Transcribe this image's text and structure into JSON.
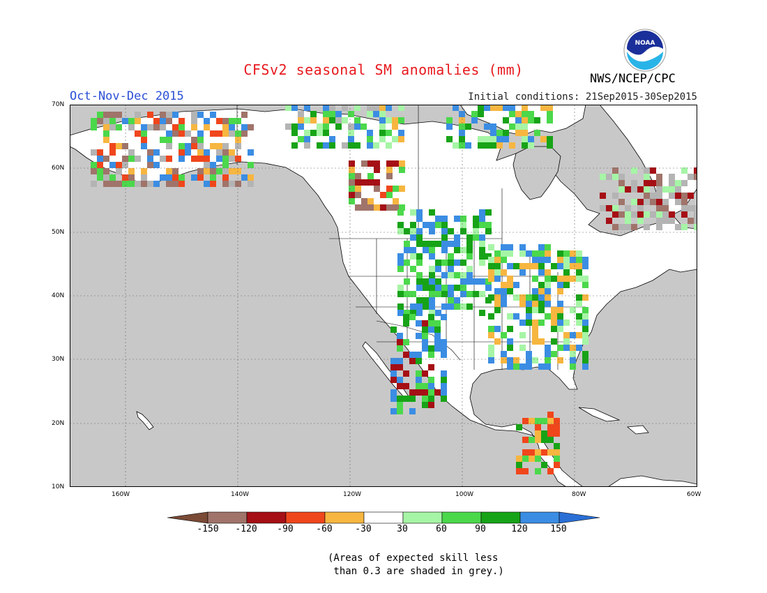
{
  "header": {
    "title": "CFSv2 seasonal SM anomalies (mm)",
    "period": "Oct-Nov-Dec 2015",
    "initial_conditions": "Initial conditions: 21Sep2015-30Sep2015",
    "agency": "NWS/NCEP/CPC",
    "logo_text": "NOAA"
  },
  "map": {
    "lon_range": [
      -172,
      -60
    ],
    "lat_range": [
      10,
      70
    ],
    "x_ticks": [
      "160W",
      "140W",
      "120W",
      "100W",
      "80W",
      "60W"
    ],
    "y_ticks": [
      "10N",
      "20N",
      "30N",
      "40N",
      "50N",
      "60N",
      "70N"
    ],
    "ocean_color": "#c8c8c8",
    "land_color": "#ffffff"
  },
  "legend": {
    "labels": [
      "-150",
      "-120",
      "-90",
      "-60",
      "-30",
      "30",
      "60",
      "90",
      "120",
      "150"
    ],
    "colors": [
      "#7a4a36",
      "#a0746a",
      "#a50f15",
      "#f0461c",
      "#f7b640",
      "#ffffff",
      "#a6f5a6",
      "#4bd84b",
      "#17a317",
      "#3b8de3",
      "#2a6fd6"
    ]
  },
  "footnote": "(Areas of expected skill less\n than 0.3 are shaded in grey.)"
}
